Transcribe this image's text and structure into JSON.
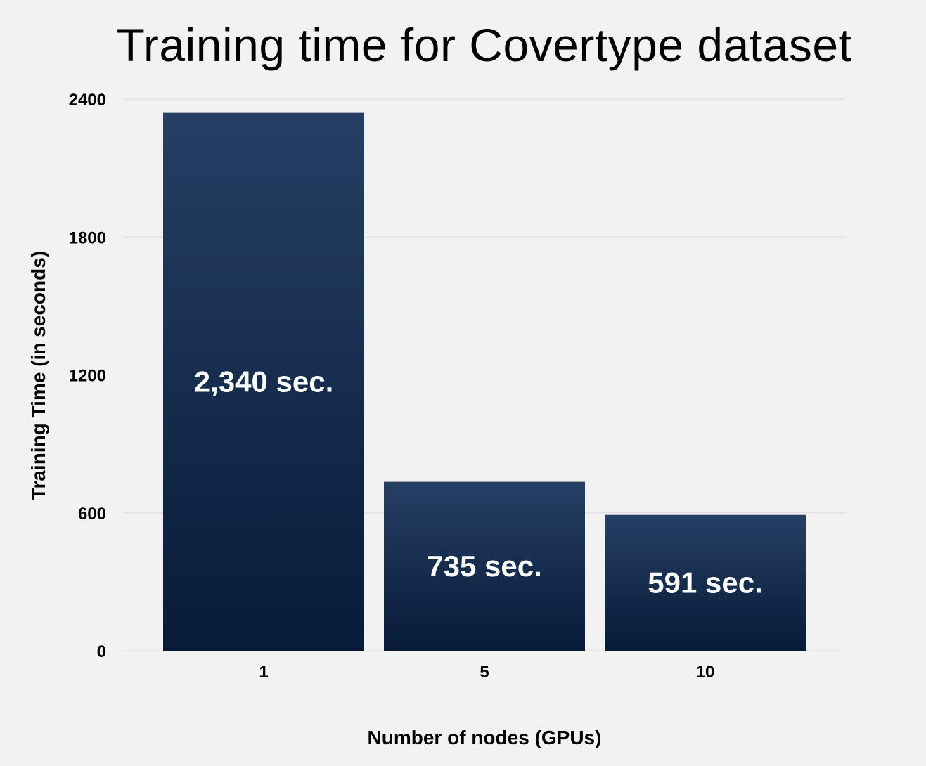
{
  "chart_data": {
    "type": "bar",
    "title": "Training time for Covertype dataset",
    "xlabel": "Number of nodes (GPUs)",
    "ylabel": "Training Time (in seconds)",
    "categories": [
      "1",
      "5",
      "10"
    ],
    "values": [
      2340,
      735,
      591
    ],
    "data_labels": [
      "2,340 sec.",
      "735 sec.",
      "591 sec."
    ],
    "ylim": [
      0,
      2400
    ],
    "yticks": [
      0,
      600,
      1200,
      1800,
      2400
    ],
    "ytick_labels": [
      "0",
      "600",
      "1200",
      "1800",
      "2400"
    ],
    "grid": true,
    "legend": "none",
    "colors": {
      "bar_top": "#263f64",
      "bar_bottom": "#071b39",
      "background": "#f2f2f2",
      "gridline": "#dcdcdc"
    }
  }
}
